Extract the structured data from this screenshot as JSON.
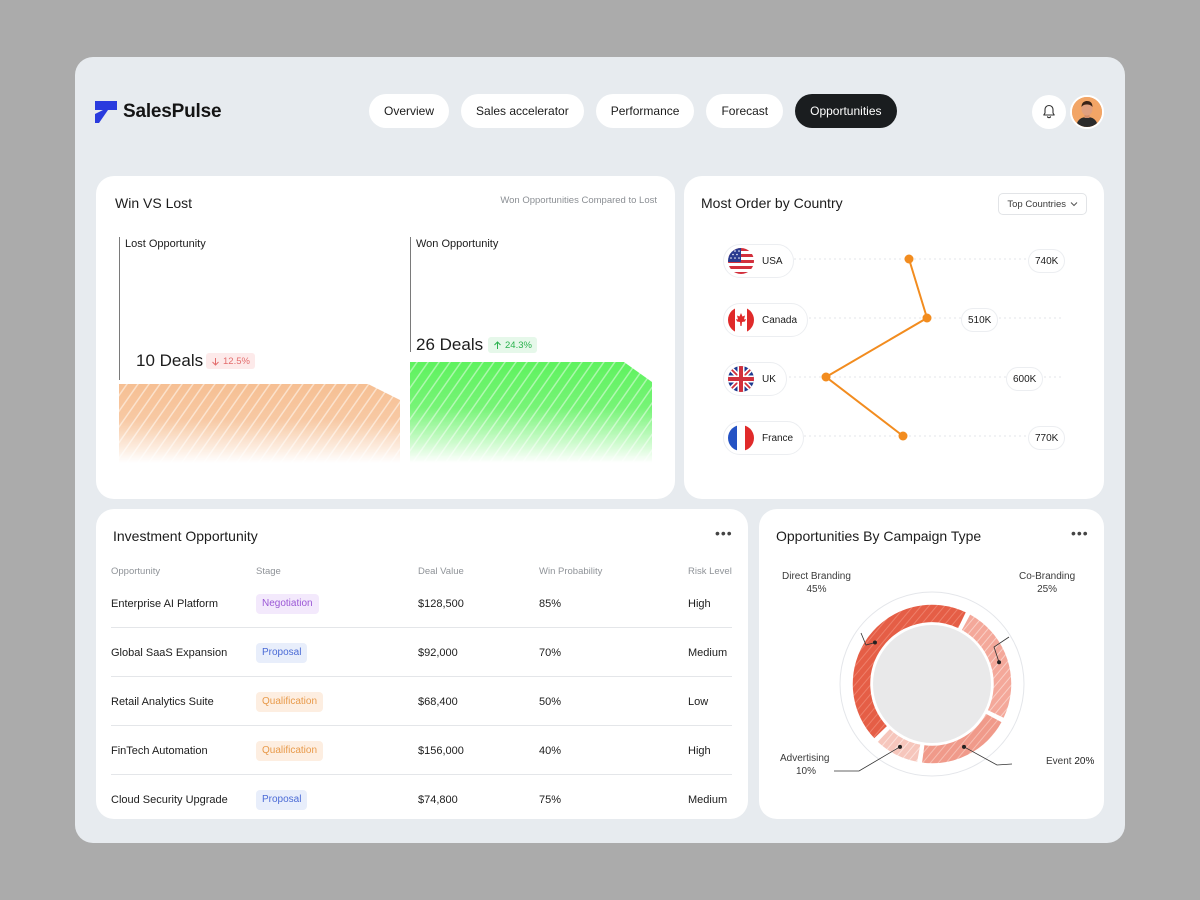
{
  "app": {
    "name": "SalesPulse"
  },
  "nav": {
    "tabs": [
      "Overview",
      "Sales accelerator",
      "Performance",
      "Forecast",
      "Opportunities"
    ],
    "active_index": 4
  },
  "header": {
    "bell_icon": "bell-icon",
    "avatar": "user-avatar"
  },
  "win_lost": {
    "title": "Win VS Lost",
    "subtitle": "Won Opportunities Compared to Lost",
    "lost": {
      "label": "Lost Opportunity",
      "deals_text": "10 Deals",
      "change_text": "12.5%",
      "direction": "down",
      "color": "#f5b98a"
    },
    "won": {
      "label": "Won Opportunity",
      "deals_text": "26 Deals",
      "change_text": "24.3%",
      "direction": "up",
      "color": "#66ee66"
    }
  },
  "countries": {
    "title": "Most Order by Country",
    "filter": "Top Countries",
    "line_color": "#f28c1f",
    "items": [
      {
        "name": "USA",
        "value_text": "740K",
        "value": 740,
        "flag": "us-flag"
      },
      {
        "name": "Canada",
        "value_text": "510K",
        "value": 510,
        "flag": "canada-flag"
      },
      {
        "name": "UK",
        "value_text": "600K",
        "value": 600,
        "flag": "uk-flag"
      },
      {
        "name": "France",
        "value_text": "770K",
        "value": 770,
        "flag": "france-flag"
      }
    ]
  },
  "investment": {
    "title": "Investment Opportunity",
    "columns": [
      "Opportunity",
      "Stage",
      "Deal Value",
      "Win Probability",
      "Risk Level"
    ],
    "rows": [
      {
        "opportunity": "Enterprise AI Platform",
        "stage": "Negotiation",
        "stage_type": "negotiation",
        "deal_value": "$128,500",
        "win_probability": "85%",
        "risk": "High"
      },
      {
        "opportunity": "Global SaaS Expansion",
        "stage": "Proposal",
        "stage_type": "proposal",
        "deal_value": "$92,000",
        "win_probability": "70%",
        "risk": "Medium"
      },
      {
        "opportunity": "Retail Analytics Suite",
        "stage": "Qualification",
        "stage_type": "qualification",
        "deal_value": "$68,400",
        "win_probability": "50%",
        "risk": "Low"
      },
      {
        "opportunity": "FinTech Automation",
        "stage": "Qualification",
        "stage_type": "qualification",
        "deal_value": "$156,000",
        "win_probability": "40%",
        "risk": "High"
      },
      {
        "opportunity": "Cloud Security Upgrade",
        "stage": "Proposal",
        "stage_type": "proposal",
        "deal_value": "$74,800",
        "win_probability": "75%",
        "risk": "Medium"
      }
    ]
  },
  "campaign": {
    "title": "Opportunities By Campaign Type",
    "segments": [
      {
        "name": "Direct Branding",
        "pct_text": "45%",
        "value": 45,
        "color": "#e55e46"
      },
      {
        "name": "Co-Branding",
        "pct_text": "25%",
        "value": 25,
        "color": "#f4a89a"
      },
      {
        "name": "Event",
        "pct_text": "20%",
        "value": 20,
        "color": "#f0a091"
      },
      {
        "name": "Advertising",
        "pct_text": "10%",
        "value": 10,
        "color": "#f7cbc2"
      }
    ]
  }
}
